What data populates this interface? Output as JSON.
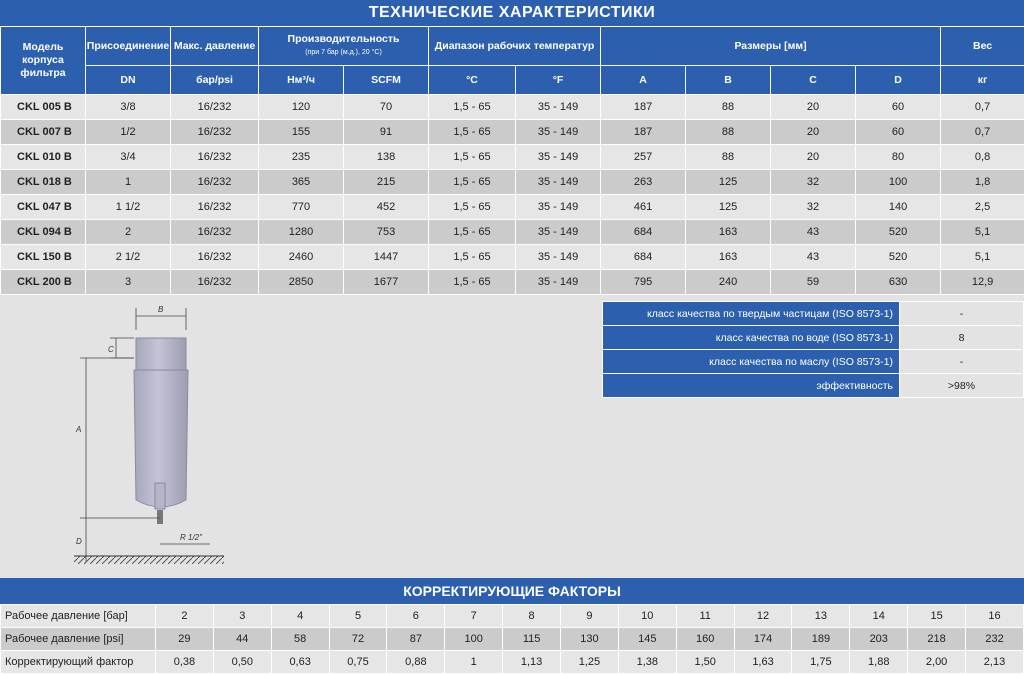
{
  "title": "ТЕХНИЧЕСКИЕ ХАРАКТЕРИСТИКИ",
  "headers": {
    "model": "Модель корпуса фильтра",
    "connection": "Присоединение",
    "connection_unit": "DN",
    "pressure": "Макс. давление",
    "pressure_unit": "бар/psi",
    "capacity": "Производительность",
    "capacity_note": "(при 7 бар (м.д.), 20 °С)",
    "capacity_unit1": "Нм³/ч",
    "capacity_unit2": "SCFM",
    "temp": "Диапазон рабочих температур",
    "temp_unit1": "°С",
    "temp_unit2": "°F",
    "dims": "Размеры [мм]",
    "dim_a": "A",
    "dim_b": "B",
    "dim_c": "C",
    "dim_d": "D",
    "weight": "Вес",
    "weight_unit": "кг"
  },
  "rows": [
    [
      "CKL 005 B",
      "3/8",
      "16/232",
      "120",
      "70",
      "1,5 - 65",
      "35 - 149",
      "187",
      "88",
      "20",
      "60",
      "0,7"
    ],
    [
      "CKL 007 B",
      "1/2",
      "16/232",
      "155",
      "91",
      "1,5 - 65",
      "35 - 149",
      "187",
      "88",
      "20",
      "60",
      "0,7"
    ],
    [
      "CKL 010 B",
      "3/4",
      "16/232",
      "235",
      "138",
      "1,5 - 65",
      "35 - 149",
      "257",
      "88",
      "20",
      "80",
      "0,8"
    ],
    [
      "CKL 018 B",
      "1",
      "16/232",
      "365",
      "215",
      "1,5 - 65",
      "35 - 149",
      "263",
      "125",
      "32",
      "100",
      "1,8"
    ],
    [
      "CKL 047 B",
      "1 1/2",
      "16/232",
      "770",
      "452",
      "1,5 - 65",
      "35 - 149",
      "461",
      "125",
      "32",
      "140",
      "2,5"
    ],
    [
      "CKL 094 B",
      "2",
      "16/232",
      "1280",
      "753",
      "1,5 - 65",
      "35 - 149",
      "684",
      "163",
      "43",
      "520",
      "5,1"
    ],
    [
      "CKL 150 B",
      "2 1/2",
      "16/232",
      "2460",
      "1447",
      "1,5 - 65",
      "35 - 149",
      "684",
      "163",
      "43",
      "520",
      "5,1"
    ],
    [
      "CKL 200 B",
      "3",
      "16/232",
      "2850",
      "1677",
      "1,5 - 65",
      "35 - 149",
      "795",
      "240",
      "59",
      "630",
      "12,9"
    ]
  ],
  "drawing": {
    "label_a": "A",
    "label_b": "B",
    "label_c": "C",
    "label_d": "D",
    "label_thread": "R 1/2\""
  },
  "quality": [
    {
      "label": "класс качества по твердым частицам (ISO 8573-1)",
      "value": "-"
    },
    {
      "label": "класс качества по воде (ISO 8573-1)",
      "value": "8"
    },
    {
      "label": "класс качества по маслу (ISO 8573-1)",
      "value": "-"
    },
    {
      "label": "эффективность",
      "value": ">98%"
    }
  ],
  "correction_title": "КОРРЕКТИРУЮЩИЕ ФАКТОРЫ",
  "correction": [
    {
      "label": "Рабочее давление [бар]",
      "values": [
        "2",
        "3",
        "4",
        "5",
        "6",
        "7",
        "8",
        "9",
        "10",
        "11",
        "12",
        "13",
        "14",
        "15",
        "16"
      ]
    },
    {
      "label": "Рабочее давление [psi]",
      "values": [
        "29",
        "44",
        "58",
        "72",
        "87",
        "100",
        "115",
        "130",
        "145",
        "160",
        "174",
        "189",
        "203",
        "218",
        "232"
      ]
    },
    {
      "label": "Корректирующий фактор",
      "values": [
        "0,38",
        "0,50",
        "0,63",
        "0,75",
        "0,88",
        "1",
        "1,13",
        "1,25",
        "1,38",
        "1,50",
        "1,63",
        "1,75",
        "1,88",
        "2,00",
        "2,13"
      ]
    }
  ]
}
